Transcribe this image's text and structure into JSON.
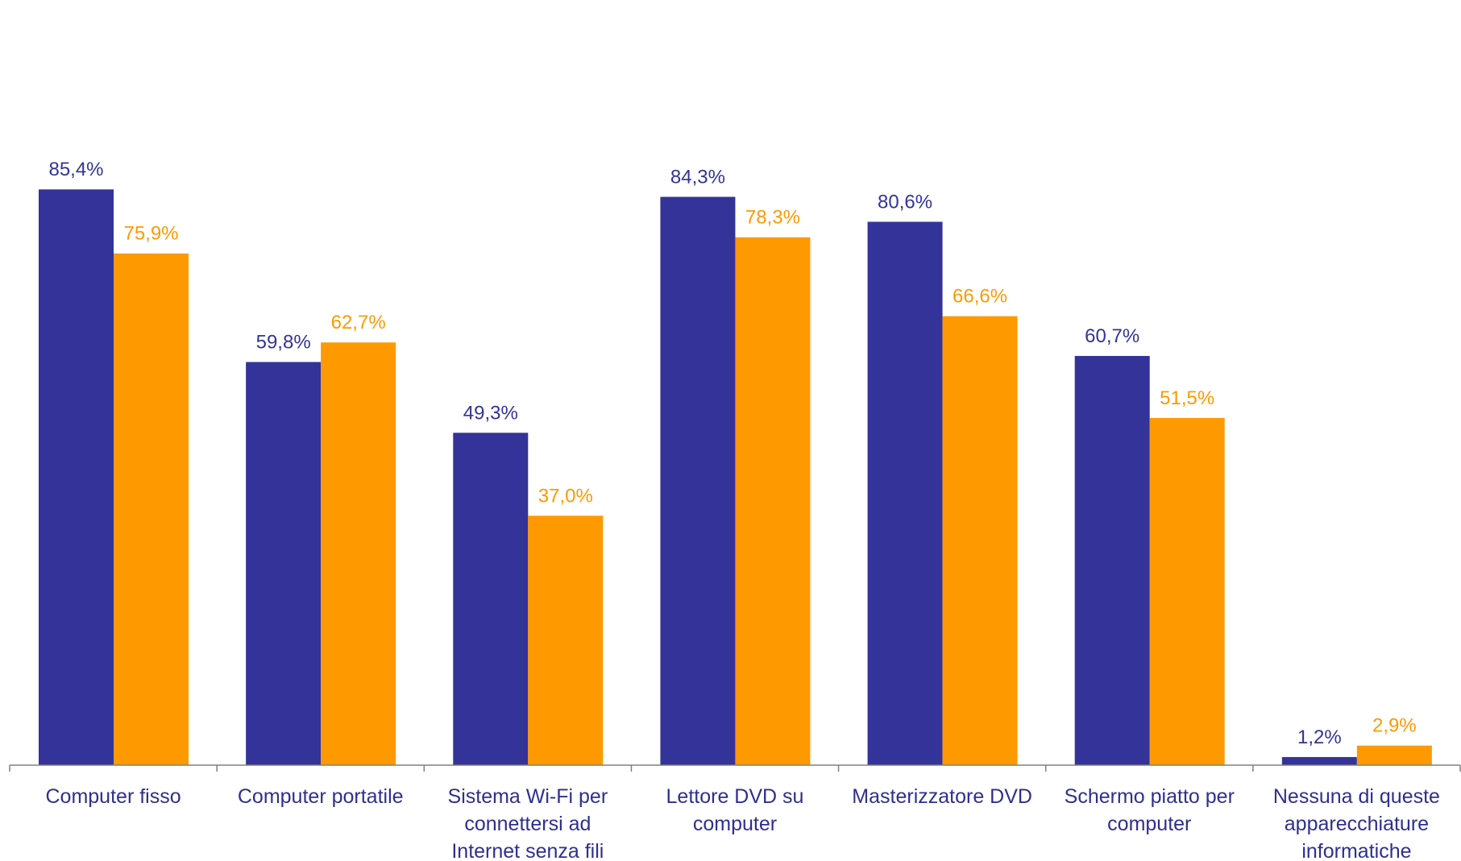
{
  "chart_data": {
    "type": "bar",
    "title": "",
    "xlabel": "",
    "ylabel": "",
    "ylim": [
      0,
      90
    ],
    "grid": false,
    "legend": "none",
    "categories": [
      [
        "Computer fisso"
      ],
      [
        "Computer portatile"
      ],
      [
        "Sistema Wi-Fi per",
        "connettersi ad",
        "Internet senza fili"
      ],
      [
        "Lettore DVD su",
        "computer"
      ],
      [
        "Masterizzatore DVD"
      ],
      [
        "Schermo piatto per",
        "computer"
      ],
      [
        "Nessuna di queste",
        "apparecchiature",
        "informatiche"
      ]
    ],
    "series": [
      {
        "color": "#333399",
        "values": [
          85.4,
          59.8,
          49.3,
          84.3,
          80.6,
          60.7,
          1.2
        ],
        "labels": [
          "85,4%",
          "59,8%",
          "49,3%",
          "84,3%",
          "80,6%",
          "60,7%",
          "1,2%"
        ]
      },
      {
        "color": "#ff9900",
        "values": [
          75.9,
          62.7,
          37.0,
          78.3,
          66.6,
          51.5,
          2.9
        ],
        "labels": [
          "75,9%",
          "62,7%",
          "37,0%",
          "78,3%",
          "66,6%",
          "51,5%",
          "2,9%"
        ]
      }
    ],
    "axis_color": "#808080"
  }
}
